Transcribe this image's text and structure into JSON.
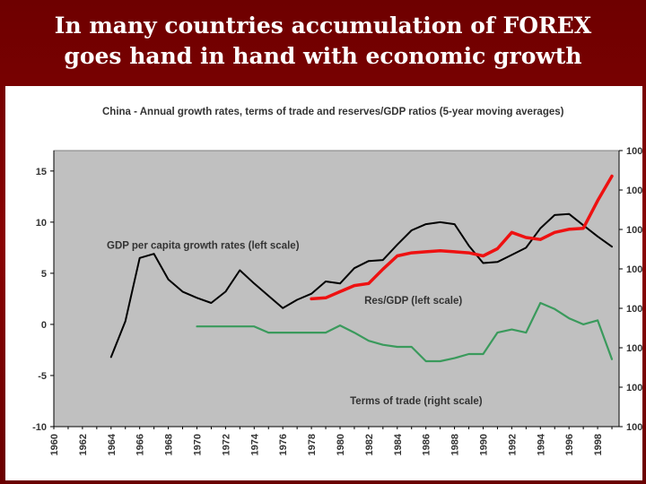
{
  "slide": {
    "title_line1": "In many countries accumulation of FOREX",
    "title_line2": "goes hand in hand with economic growth",
    "background_color": "#7a0000",
    "title_color": "#ffffff"
  },
  "chart_data": {
    "type": "line",
    "title": "China - Annual growth rates, terms of trade and reserves/GDP ratios (5-year moving averages)",
    "x_tick_labels": [
      "1960",
      "1962",
      "1964",
      "1966",
      "1968",
      "1970",
      "1972",
      "1974",
      "1976",
      "1978",
      "1980",
      "1982",
      "1984",
      "1986",
      "1988",
      "1990",
      "1992",
      "1994",
      "1996",
      "1998"
    ],
    "xlim": [
      1960,
      1999.5
    ],
    "left_axis": {
      "ylim": [
        -10,
        17
      ],
      "tick_values": [
        -10,
        -5,
        0,
        5,
        10,
        15
      ],
      "tick_labels": [
        "-10",
        "-5",
        "0",
        "5",
        "10",
        "15"
      ]
    },
    "right_axis": {
      "tick_labels": [
        "100",
        "100",
        "100",
        "100",
        "100",
        "100",
        "100",
        "100"
      ]
    },
    "grid": false,
    "plot_background": "#c0c0c0",
    "series": [
      {
        "name": "GDP per capita growth rates (left scale)",
        "color": "#000000",
        "x": [
          1964,
          1965,
          1966,
          1967,
          1968,
          1969,
          1970,
          1971,
          1972,
          1973,
          1974,
          1975,
          1976,
          1977,
          1978,
          1979,
          1980,
          1981,
          1982,
          1983,
          1984,
          1985,
          1986,
          1987,
          1988,
          1989,
          1990,
          1991,
          1992,
          1993,
          1994,
          1995,
          1996,
          1997,
          1998,
          1999
        ],
        "values": [
          -3.2,
          0.3,
          6.5,
          6.9,
          4.4,
          3.2,
          2.6,
          2.1,
          3.2,
          5.3,
          4.0,
          2.8,
          1.6,
          2.4,
          3.0,
          4.2,
          4.0,
          5.5,
          6.2,
          6.3,
          7.8,
          9.2,
          9.8,
          10.0,
          9.8,
          7.7,
          6.0,
          6.1,
          6.8,
          7.5,
          9.4,
          10.7,
          10.8,
          9.7,
          8.6,
          7.6
        ]
      },
      {
        "name": "Res/GDP (left scale)",
        "color": "#ee1111",
        "x": [
          1978,
          1979,
          1980,
          1981,
          1982,
          1983,
          1984,
          1985,
          1986,
          1987,
          1988,
          1989,
          1990,
          1991,
          1992,
          1993,
          1994,
          1995,
          1996,
          1997,
          1998,
          1999
        ],
        "values": [
          2.5,
          2.6,
          3.2,
          3.8,
          4.0,
          5.4,
          6.7,
          7.0,
          7.1,
          7.2,
          7.1,
          7.0,
          6.7,
          7.4,
          9.0,
          8.5,
          8.3,
          9.0,
          9.3,
          9.4,
          12.1,
          14.5
        ]
      },
      {
        "name": "Terms of trade (right scale)",
        "color": "#3a9a5c",
        "x": [
          1970,
          1971,
          1972,
          1973,
          1974,
          1975,
          1976,
          1977,
          1978,
          1979,
          1980,
          1981,
          1982,
          1983,
          1984,
          1985,
          1986,
          1987,
          1988,
          1989,
          1990,
          1991,
          1992,
          1993,
          1994,
          1995,
          1996,
          1997,
          1998,
          1999
        ],
        "values": [
          -0.2,
          -0.2,
          -0.2,
          -0.2,
          -0.2,
          -0.8,
          -0.8,
          -0.8,
          -0.8,
          -0.8,
          -0.1,
          -0.8,
          -1.6,
          -2.0,
          -2.2,
          -2.2,
          -3.6,
          -3.6,
          -3.3,
          -2.9,
          -2.9,
          -0.8,
          -0.5,
          -0.8,
          2.1,
          1.5,
          0.6,
          0.0,
          0.4,
          -3.4
        ]
      }
    ],
    "annotations": [
      {
        "text": "GDP per capita growth rates (left scale)",
        "x": 1963.7,
        "y": 7.4
      },
      {
        "text": "Res/GDP (left scale)",
        "x": 1981.7,
        "y": 2.0
      },
      {
        "text": "Terms of trade (right scale)",
        "x": 1980.7,
        "y": -7.8
      }
    ]
  }
}
